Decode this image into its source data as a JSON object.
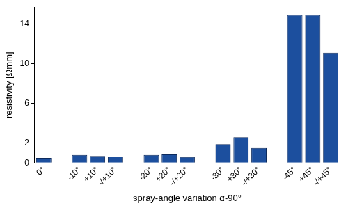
{
  "chart_data": {
    "type": "bar",
    "x_label": "spray-angle variation α-90°",
    "y_label": "resistivity [Ωmm]",
    "categories": [
      "0°",
      null,
      "-10°",
      "+10°",
      "-/+10°",
      null,
      "-20°",
      "+20°",
      "-/+20°",
      null,
      "-30°",
      "+30°",
      "-/+30°",
      null,
      "-45°",
      "+45°",
      "-/+45°"
    ],
    "values": [
      0.5,
      null,
      0.8,
      0.7,
      0.65,
      null,
      0.8,
      0.85,
      0.6,
      null,
      1.9,
      2.6,
      1.5,
      null,
      14.9,
      14.9,
      11.1
    ],
    "color": "#1c4f9e",
    "ylim": [
      0,
      15.7
    ],
    "yticks": [
      0,
      2,
      6,
      10,
      14
    ],
    "grid": false
  }
}
